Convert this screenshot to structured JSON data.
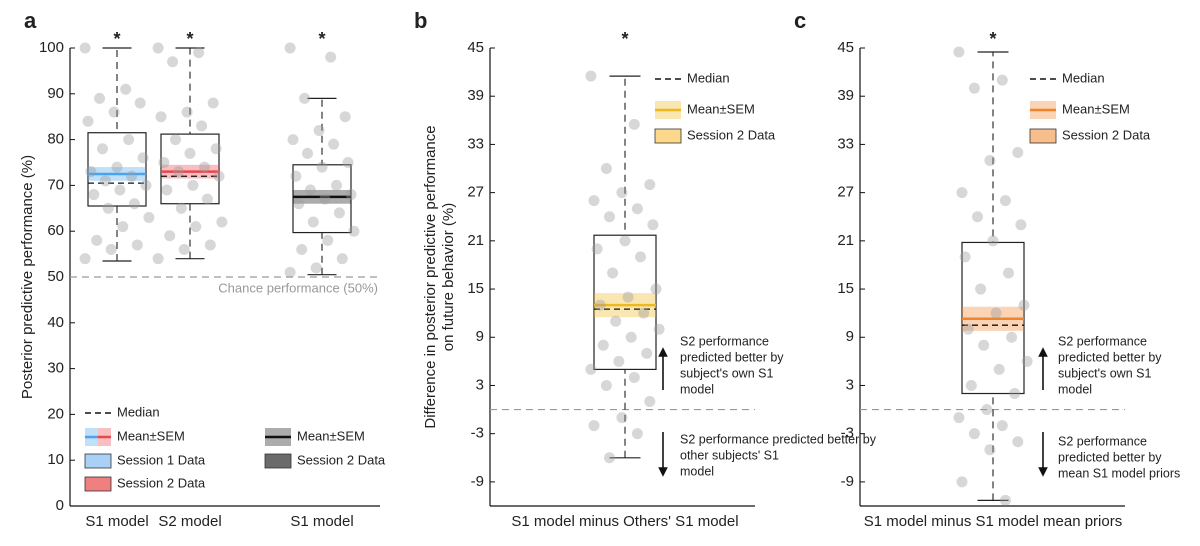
{
  "chart_data": [
    {
      "type": "box",
      "panel": "a",
      "ylabel": [
        "Posterior predictive performance (%)"
      ],
      "ylim": [
        0,
        100
      ],
      "yticks": [
        0,
        10,
        20,
        30,
        40,
        50,
        60,
        70,
        80,
        90,
        100
      ],
      "reference_line": 50,
      "reference_label": "Chance performance (50%)",
      "boxes": [
        {
          "category": "S1 model",
          "color": "#4aa3ee",
          "whisker_low": 53.5,
          "q1": 65.5,
          "median": 70.5,
          "q3": 81.5,
          "whisker_high": 100,
          "mean": 72.5,
          "sem": 1.5,
          "significance": "*",
          "points": [
            100,
            91,
            89,
            88,
            86,
            84,
            80,
            78,
            76,
            74,
            73,
            72,
            71,
            70,
            69,
            68,
            66,
            65,
            63,
            61,
            58,
            57,
            56,
            54
          ]
        },
        {
          "category": "S2 model",
          "color": "#e8474c",
          "whisker_low": 54,
          "q1": 66,
          "median": 72,
          "q3": 81.2,
          "whisker_high": 100,
          "mean": 73,
          "sem": 1.5,
          "significance": "*",
          "points": [
            100,
            99,
            97,
            88,
            86,
            85,
            83,
            80,
            78,
            77,
            75,
            74,
            73,
            72,
            70,
            69,
            67,
            65,
            62,
            61,
            59,
            57,
            56,
            54
          ]
        },
        {
          "category": "S1 model",
          "color": "#111111",
          "whisker_low": 50.5,
          "q1": 59.7,
          "median": 67.5,
          "q3": 74.5,
          "whisker_high": 89,
          "mean": 67.5,
          "sem": 1.5,
          "significance": "*",
          "points": [
            100,
            98,
            89,
            85,
            82,
            80,
            79,
            77,
            75,
            74,
            72,
            70,
            69,
            68,
            67,
            66,
            64,
            62,
            60,
            58,
            56,
            54,
            52,
            51
          ]
        }
      ],
      "legend": [
        {
          "label": "Median",
          "style": "median",
          "colors": [
            "#111111"
          ]
        },
        {
          "label": "Mean±SEM",
          "style": "mean",
          "colors": [
            "#4aa3ee",
            "#e8474c"
          ]
        },
        {
          "label": "Session 1 Data",
          "style": "data",
          "colors": [
            "#a9d1f6"
          ]
        },
        {
          "label": "Session 2 Data",
          "style": "data",
          "colors": [
            "#f07f80"
          ]
        },
        {
          "label": "Mean±SEM",
          "style": "mean",
          "colors": [
            "#111111"
          ]
        },
        {
          "label": "Session 2 Data",
          "style": "data",
          "colors": [
            "#6b6b6b"
          ]
        }
      ]
    },
    {
      "type": "box",
      "panel": "b",
      "ylabel": [
        "Difference in posterior predictive performance",
        "on future behavior (%)"
      ],
      "ylim": [
        -12,
        45
      ],
      "yticks": [
        -9,
        -3,
        3,
        9,
        15,
        21,
        27,
        33,
        39,
        45
      ],
      "reference_line": 0,
      "boxes": [
        {
          "category": "S1 model minus Others' S1 model",
          "color": "#eeb820",
          "whisker_low": -6,
          "q1": 5,
          "median": 12.5,
          "q3": 21.7,
          "whisker_high": 41.5,
          "mean": 13,
          "sem": 1.5,
          "significance": "*",
          "points": [
            41.5,
            35.5,
            30,
            28,
            27,
            26,
            25,
            24,
            23,
            21,
            20,
            19,
            17,
            15,
            14,
            13,
            12,
            11,
            10,
            9,
            8,
            7,
            6,
            5,
            4,
            3,
            1,
            -1,
            -2,
            -3,
            -6
          ]
        }
      ],
      "legend": [
        {
          "label": "Median",
          "style": "median",
          "colors": [
            "#111111"
          ]
        },
        {
          "label": "Mean±SEM",
          "style": "mean",
          "colors": [
            "#eeb820"
          ]
        },
        {
          "label": "Session 2 Data",
          "style": "data",
          "colors": [
            "#fcd98a"
          ]
        }
      ],
      "annotations": [
        {
          "direction": "up",
          "lines": [
            "S2 performance",
            "predicted better by",
            "subject's own S1",
            "model"
          ]
        },
        {
          "direction": "down",
          "lines": [
            "S2 performance predicted better by",
            "other subjects' S1",
            "model"
          ]
        }
      ]
    },
    {
      "type": "box",
      "panel": "c",
      "ylabel": [],
      "ylim": [
        -12,
        45
      ],
      "yticks": [
        -9,
        -3,
        3,
        9,
        15,
        21,
        27,
        33,
        39,
        45
      ],
      "reference_line": 0,
      "boxes": [
        {
          "category": "S1 model minus S1 model mean priors",
          "color": "#f0842c",
          "whisker_low": -11.3,
          "q1": 2,
          "median": 10.5,
          "q3": 20.8,
          "whisker_high": 44.5,
          "mean": 11.3,
          "sem": 1.5,
          "significance": "*",
          "points": [
            44.5,
            41,
            40,
            32,
            31,
            27,
            26,
            24,
            23,
            21,
            19,
            17,
            15,
            13,
            12,
            10,
            9,
            8,
            6,
            5,
            3,
            2,
            0,
            -1,
            -2,
            -3,
            -4,
            -5,
            -9,
            -11.3
          ]
        }
      ],
      "legend": [
        {
          "label": "Median",
          "style": "median",
          "colors": [
            "#111111"
          ]
        },
        {
          "label": "Mean±SEM",
          "style": "mean",
          "colors": [
            "#f0842c"
          ]
        },
        {
          "label": "Session 2 Data",
          "style": "data",
          "colors": [
            "#f7bd8a"
          ]
        }
      ],
      "annotations": [
        {
          "direction": "up",
          "lines": [
            "S2 performance",
            "predicted better by",
            "subject's own S1",
            "model"
          ]
        },
        {
          "direction": "down",
          "lines": [
            "S2 performance",
            "predicted better by",
            "mean S1 model priors"
          ]
        }
      ]
    }
  ]
}
